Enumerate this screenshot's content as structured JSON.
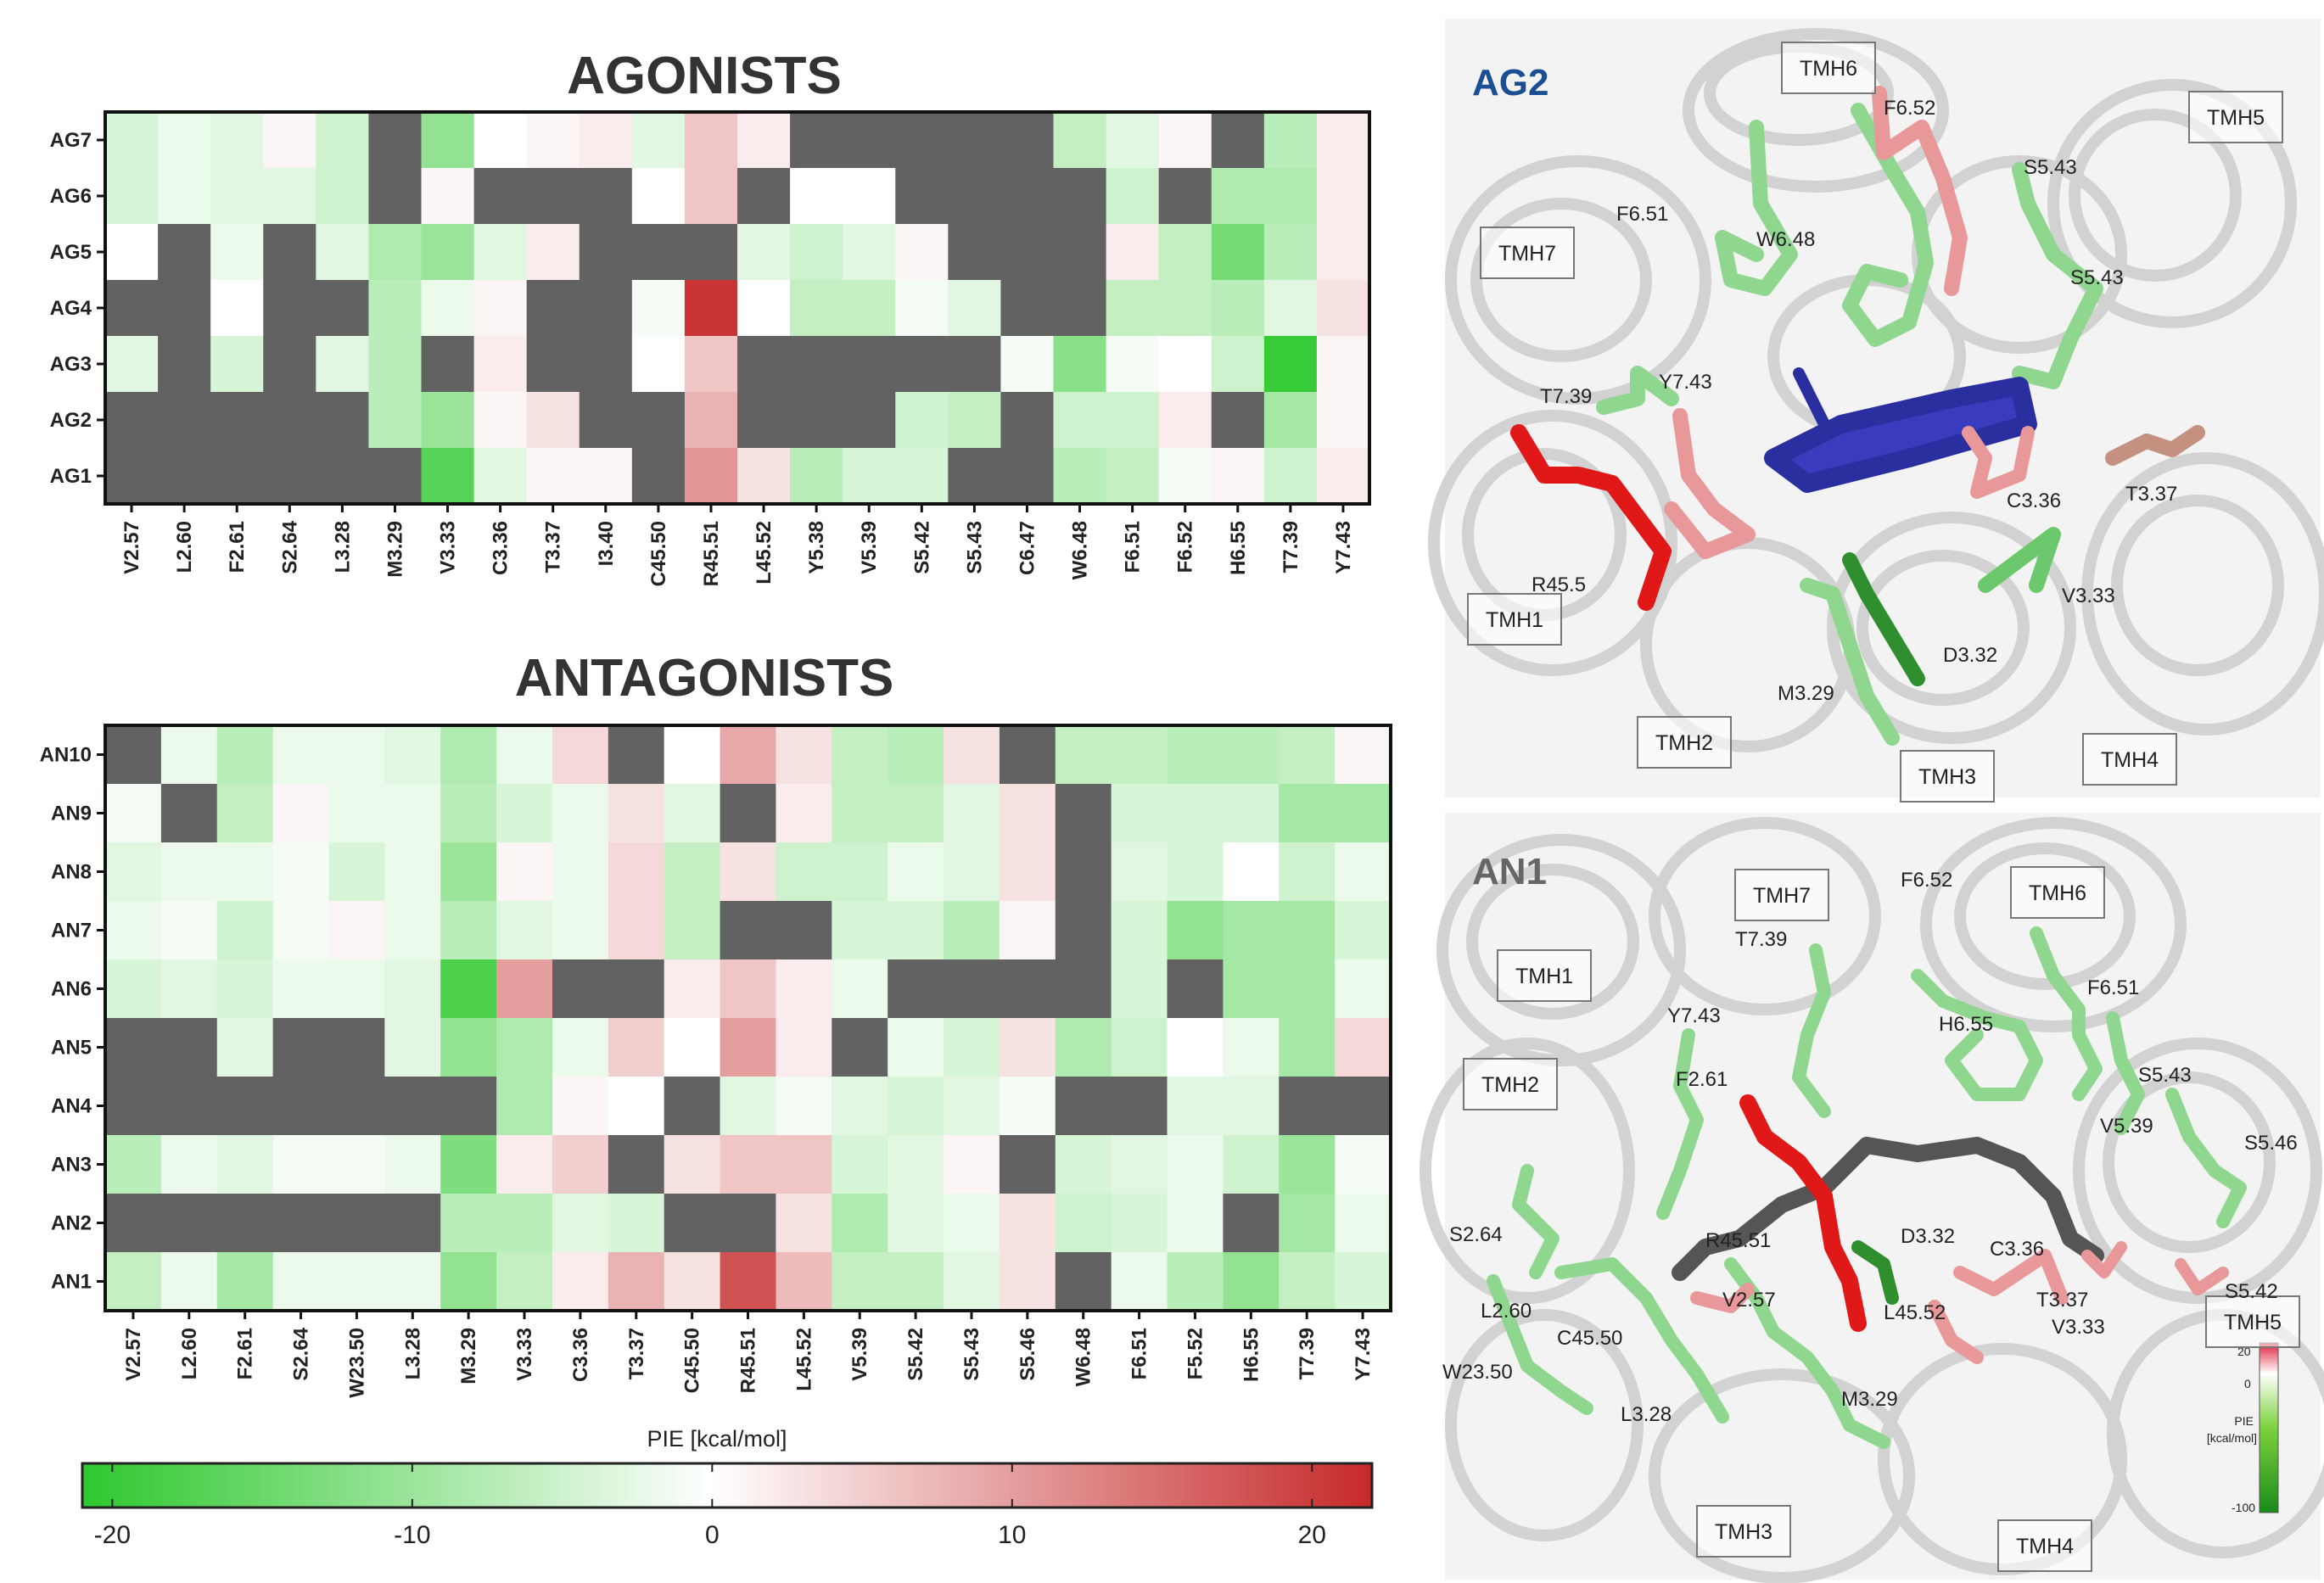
{
  "chart_data": [
    {
      "type": "heatmap",
      "title": "AGONISTS",
      "rows": [
        "AG7",
        "AG6",
        "AG5",
        "AG4",
        "AG3",
        "AG2",
        "AG1"
      ],
      "columns": [
        "V2.57",
        "L2.60",
        "F2.61",
        "S2.64",
        "L3.28",
        "M3.29",
        "V3.33",
        "C3.36",
        "T3.37",
        "I3.40",
        "C45.50",
        "R45.51",
        "L45.52",
        "Y5.38",
        "V5.39",
        "S5.42",
        "S5.43",
        "C6.47",
        "W6.48",
        "F6.51",
        "F6.52",
        "H6.55",
        "T7.39",
        "Y7.43"
      ],
      "values": [
        [
          -4,
          -2,
          -3,
          1,
          -5,
          null,
          -11,
          0,
          1,
          2,
          -3,
          6,
          2,
          null,
          null,
          null,
          null,
          null,
          -6,
          -3,
          1,
          null,
          -7,
          2
        ],
        [
          -4,
          -2,
          -3,
          -3,
          -5,
          null,
          1,
          null,
          null,
          null,
          0,
          6,
          null,
          0,
          0,
          null,
          null,
          null,
          null,
          -5,
          null,
          -8,
          -8,
          2
        ],
        [
          0,
          null,
          -2,
          null,
          -3,
          -8,
          -10,
          -3,
          2,
          null,
          null,
          null,
          -3,
          -5,
          -3,
          1,
          null,
          null,
          null,
          2,
          -6,
          -14,
          -7,
          2
        ],
        [
          null,
          null,
          0,
          null,
          null,
          -7,
          -2,
          1,
          null,
          null,
          -1,
          21,
          0,
          -6,
          -6,
          -1,
          -3,
          null,
          null,
          -6,
          -6,
          -7,
          -3,
          3
        ],
        [
          -3,
          null,
          -4,
          null,
          -3,
          -7,
          null,
          2,
          null,
          null,
          0,
          6,
          null,
          null,
          null,
          null,
          null,
          -1,
          -12,
          -1,
          0,
          -5,
          -20,
          1
        ],
        [
          null,
          null,
          null,
          null,
          null,
          -7,
          -10,
          1,
          3,
          null,
          null,
          8,
          null,
          null,
          null,
          -5,
          -6,
          null,
          -5,
          -5,
          2,
          null,
          -9,
          1
        ],
        [
          null,
          null,
          null,
          null,
          null,
          null,
          -17,
          -3,
          1,
          1,
          null,
          11,
          3,
          -7,
          -4,
          -4,
          null,
          null,
          -7,
          -6,
          -1,
          1,
          -5,
          2
        ]
      ],
      "missing_color": "#626262"
    },
    {
      "type": "heatmap",
      "title": "ANTAGONISTS",
      "rows": [
        "AN10",
        "AN9",
        "AN8",
        "AN7",
        "AN6",
        "AN5",
        "AN4",
        "AN3",
        "AN2",
        "AN1"
      ],
      "columns": [
        "V2.57",
        "L2.60",
        "F2.61",
        "S2.64",
        "W23.50",
        "L3.28",
        "M3.29",
        "V3.33",
        "C3.36",
        "T3.37",
        "C45.50",
        "R45.51",
        "L45.52",
        "V5.39",
        "S5.42",
        "S5.43",
        "S5.46",
        "W6.48",
        "F6.51",
        "F5.52",
        "H6.55",
        "T7.39",
        "Y7.43"
      ],
      "values": [
        [
          null,
          -2,
          -7,
          -2,
          -2,
          -3,
          -8,
          -2,
          4,
          null,
          0,
          9,
          3,
          -6,
          -7,
          3,
          null,
          -6,
          -6,
          -7,
          -7,
          -6,
          1
        ],
        [
          -1,
          null,
          -6,
          1,
          -2,
          -2,
          -7,
          -4,
          -2,
          3,
          -3,
          null,
          2,
          -6,
          -6,
          -3,
          3,
          null,
          -4,
          -4,
          -4,
          -9,
          -9
        ],
        [
          -3,
          -2,
          -2,
          -1,
          -4,
          -2,
          -10,
          1,
          -2,
          4,
          -6,
          3,
          -5,
          -5,
          -2,
          -3,
          3,
          null,
          -3,
          -4,
          0,
          -5,
          -2
        ],
        [
          -2,
          -1,
          -5,
          -1,
          1,
          -2,
          -7,
          -3,
          -2,
          4,
          -6,
          null,
          null,
          -4,
          -4,
          -7,
          1,
          null,
          -4,
          -11,
          -9,
          -9,
          -4
        ],
        [
          -4,
          -3,
          -4,
          -2,
          -2,
          -3,
          -18,
          10,
          null,
          null,
          2,
          6,
          2,
          -2,
          null,
          null,
          null,
          null,
          -4,
          null,
          -9,
          -9,
          -2
        ],
        [
          null,
          null,
          -3,
          null,
          null,
          -3,
          -11,
          -8,
          -2,
          5,
          0,
          10,
          2,
          null,
          -2,
          -4,
          3,
          -8,
          -5,
          0,
          -2,
          -9,
          4
        ],
        [
          null,
          null,
          null,
          null,
          null,
          null,
          null,
          -8,
          1,
          0,
          null,
          -3,
          -1,
          -3,
          -4,
          -3,
          -1,
          null,
          null,
          -3,
          -3,
          null,
          null
        ],
        [
          -7,
          -2,
          -3,
          -1,
          -1,
          -2,
          -13,
          2,
          5,
          null,
          3,
          6,
          6,
          -4,
          -3,
          1,
          null,
          -4,
          -3,
          -2,
          -5,
          -10,
          -1
        ],
        [
          null,
          null,
          null,
          null,
          null,
          null,
          -7,
          -7,
          -3,
          -4,
          null,
          null,
          3,
          -8,
          -3,
          -2,
          3,
          -5,
          -4,
          -2,
          null,
          -9,
          -2
        ],
        [
          -6,
          -2,
          -9,
          -2,
          -2,
          -2,
          -11,
          -6,
          2,
          8,
          3,
          18,
          7,
          -6,
          -6,
          -3,
          3,
          null,
          -2,
          -7,
          -11,
          -6,
          -4
        ]
      ],
      "missing_color": "#626262"
    }
  ],
  "colorbar": {
    "label": "PIE [kcal/mol]",
    "min": -21,
    "max": 22,
    "ticks": [
      -20,
      -10,
      0,
      10,
      20
    ],
    "tick_labels": [
      "-20",
      "-10",
      "0",
      "10",
      "20"
    ],
    "colors": {
      "negative": "#2ec82e",
      "zero": "#ffffff",
      "positive": "#c62a2a"
    }
  },
  "panels": {
    "top": {
      "tag": "AG2",
      "tag_color": "#1a4f94",
      "helices": [
        "TMH6",
        "TMH5",
        "TMH7",
        "TMH1",
        "TMH2",
        "TMH3",
        "TMH4"
      ],
      "residues": [
        "F6.52",
        "S5.43",
        "F6.51",
        "W6.48",
        "S5.43",
        "T7.39",
        "Y7.43",
        "C3.36",
        "T3.37",
        "R45.5",
        "V3.33",
        "D3.32",
        "M3.29"
      ]
    },
    "bottom": {
      "tag": "AN1",
      "tag_color": "#666666",
      "helices": [
        "TMH7",
        "TMH6",
        "TMH1",
        "TMH2",
        "TMH5",
        "TMH3",
        "TMH4"
      ],
      "residues": [
        "F6.52",
        "T7.39",
        "F6.51",
        "Y7.43",
        "H6.55",
        "S5.43",
        "F2.61",
        "V5.39",
        "S5.46",
        "S2.64",
        "R45.51",
        "D3.32",
        "C3.36",
        "T3.37",
        "S5.42",
        "L2.60",
        "V2.57",
        "L45.52",
        "V3.33",
        "C45.50",
        "W23.50",
        "M3.29",
        "L3.28"
      ],
      "mini_colorbar": {
        "top": "20",
        "mid": "0",
        "bottom": "-100",
        "label_1": "PIE",
        "label_2": "[kcal/mol]"
      }
    }
  }
}
